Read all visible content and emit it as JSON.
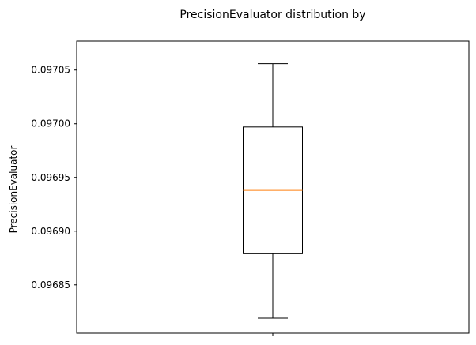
{
  "chart_data": {
    "type": "box",
    "title": "PrecisionEvaluator distribution by",
    "xlabel": "",
    "ylabel": "PrecisionEvaluator",
    "categories": [
      ""
    ],
    "series": [
      {
        "whisker_low": 0.096819,
        "q1": 0.096879,
        "median": 0.096938,
        "q3": 0.096997,
        "whisker_high": 0.097056
      }
    ],
    "ylim": [
      0.096805,
      0.097077
    ],
    "yticks": [
      0.09685,
      0.0969,
      0.09695,
      0.097,
      0.09705
    ],
    "ytick_labels": [
      "0.09685",
      "0.09690",
      "0.09695",
      "0.09700",
      "0.09705"
    ],
    "grid": false,
    "colors": {
      "box": "#000000",
      "median": "#ff7f0e",
      "background": "#ffffff"
    }
  }
}
